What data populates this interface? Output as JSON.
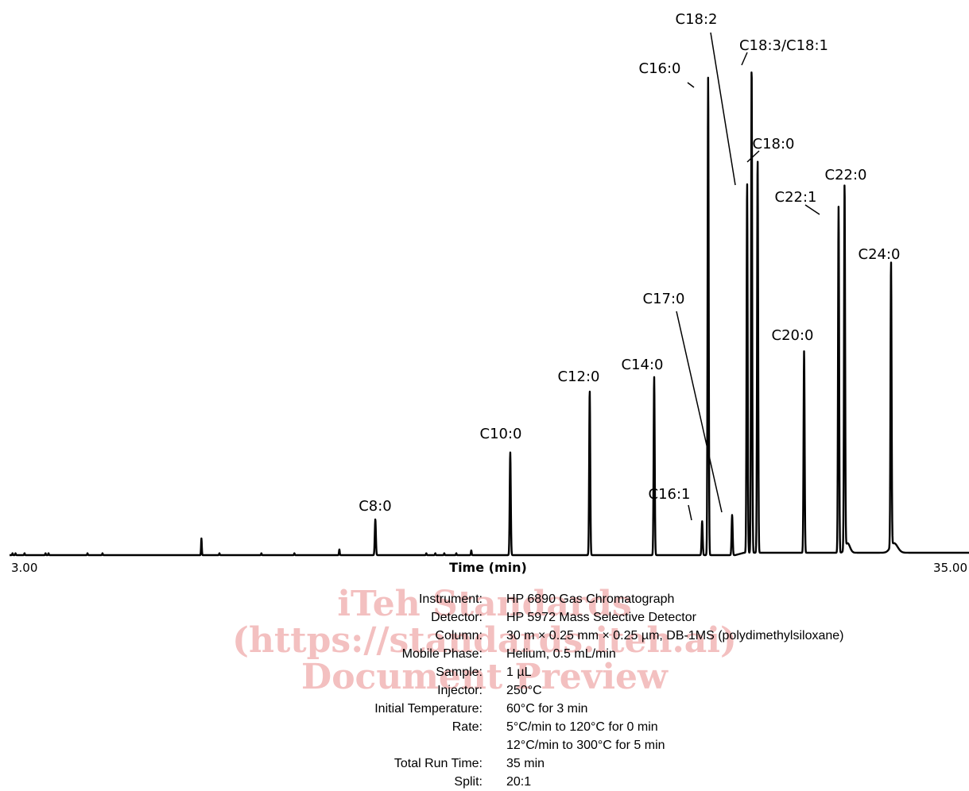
{
  "chart_data": {
    "type": "line",
    "title": "",
    "xlabel": "Time (min)",
    "ylabel": "",
    "x_tick_labels": [
      "3.00",
      "35.00"
    ],
    "xlim": [
      3.0,
      35.0
    ],
    "ylim": [
      0,
      100
    ],
    "grid": false,
    "peaks": [
      {
        "label": "C8:0",
        "x": 15.2,
        "y": 7.5
      },
      {
        "label": "C10:0",
        "x": 19.7,
        "y": 21.5
      },
      {
        "label": "C12:0",
        "x": 22.35,
        "y": 34.5
      },
      {
        "label": "C14:0",
        "x": 24.5,
        "y": 37.3
      },
      {
        "label": "C16:1",
        "x": 26.1,
        "y": 7.1
      },
      {
        "label": "C16:0",
        "x": 26.3,
        "y": 100.0
      },
      {
        "label": "C17:0",
        "x": 27.1,
        "y": 8.4
      },
      {
        "label": "C18:2",
        "x": 27.6,
        "y": 77.5
      },
      {
        "label": "C18:3/C18:1",
        "x": 27.75,
        "y": 102.2
      },
      {
        "label": "C18:0",
        "x": 27.95,
        "y": 82.5
      },
      {
        "label": "C20:0",
        "x": 29.5,
        "y": 42.2
      },
      {
        "label": "C22:1",
        "x": 30.65,
        "y": 72.4
      },
      {
        "label": "C22:0",
        "x": 30.85,
        "y": 76.6
      },
      {
        "label": "C24:0",
        "x": 32.4,
        "y": 59.6
      }
    ],
    "minor_peaks": [
      {
        "x": 9.4,
        "y": 3.5
      },
      {
        "x": 14.0,
        "y": 1.2
      },
      {
        "x": 18.4,
        "y": 1.0
      }
    ]
  },
  "conditions": [
    {
      "label": "Instrument:",
      "value": "HP 6890 Gas Chromatograph"
    },
    {
      "label": "Detector:",
      "value": "HP 5972 Mass Selective Detector"
    },
    {
      "label": "Column:",
      "value": "30 m × 0.25 mm × 0.25 µm, DB-1MS (polydimethylsiloxane)"
    },
    {
      "label": "Mobile Phase:",
      "value": "Helium, 0.5 mL/min"
    },
    {
      "label": "Sample:",
      "value": "1 µL"
    },
    {
      "label": "Injector:",
      "value": "250°C"
    },
    {
      "label": "Initial Temperature:",
      "value": "60°C for 3 min"
    },
    {
      "label": "Rate:",
      "value": "5°C/min to 120°C for 0 min"
    },
    {
      "label": "",
      "value": "12°C/min to 300°C for 5 min"
    },
    {
      "label": "Total Run Time:",
      "value": "35 min"
    },
    {
      "label": "Split:",
      "value": "20:1"
    }
  ],
  "watermark": [
    "iTeh Standards",
    "(https://standards.iteh.ai)",
    "Document Preview"
  ],
  "colors": {
    "trace": "#000000",
    "watermark": "#f3c0c0"
  }
}
